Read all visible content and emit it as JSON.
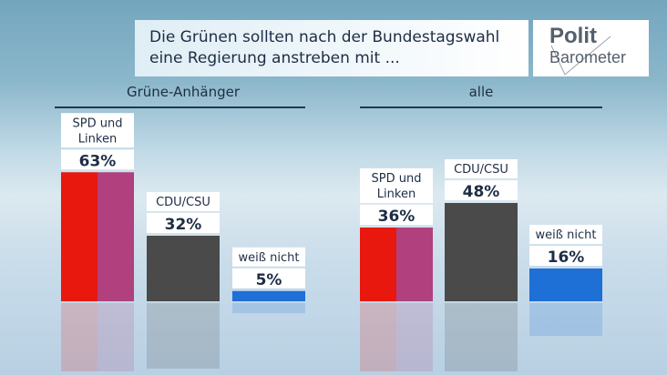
{
  "header": {
    "title_line1": "Die Grünen sollten nach der Bundestagswahl",
    "title_line2": "eine Regierung anstreben mit ..."
  },
  "logo": {
    "line1": "Polit",
    "line2": "Barometer"
  },
  "chart_data": [
    {
      "type": "bar",
      "title": "Grüne-Anhänger",
      "categories": [
        [
          "SPD und",
          "Linken"
        ],
        [
          "CDU/CSU"
        ],
        [
          "weiß nicht"
        ]
      ],
      "values": [
        63,
        32,
        5
      ],
      "labels": [
        "63%",
        "32%",
        "5%"
      ],
      "colors": [
        [
          "#e8180f",
          "#b0407e"
        ],
        [
          "#4a4a4a"
        ],
        [
          "#1e6fd6"
        ]
      ]
    },
    {
      "type": "bar",
      "title": "alle",
      "categories": [
        [
          "SPD und",
          "Linken"
        ],
        [
          "CDU/CSU"
        ],
        [
          "weiß nicht"
        ]
      ],
      "values": [
        36,
        48,
        16
      ],
      "labels": [
        "36%",
        "48%",
        "16%"
      ],
      "colors": [
        [
          "#e8180f",
          "#b0407e"
        ],
        [
          "#4a4a4a"
        ],
        [
          "#1e6fd6"
        ]
      ]
    }
  ]
}
